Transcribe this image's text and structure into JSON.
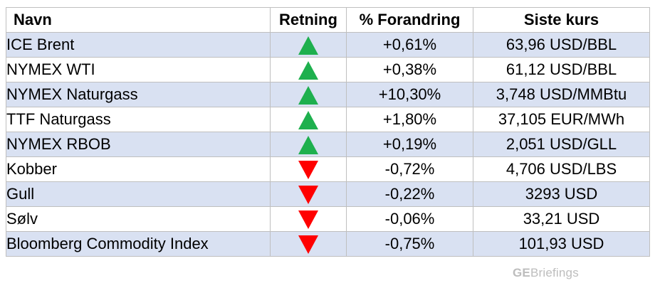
{
  "table": {
    "headers": [
      "Navn",
      "Retning",
      "% Forandring",
      "Siste kurs"
    ],
    "rows": [
      {
        "name": "ICE Brent",
        "direction": "up",
        "change": "+0,61%",
        "last": "63,96 USD/BBL"
      },
      {
        "name": "NYMEX WTI",
        "direction": "up",
        "change": "+0,38%",
        "last": "61,12 USD/BBL"
      },
      {
        "name": "NYMEX Naturgass",
        "direction": "up",
        "change": "+10,30%",
        "last": "3,748 USD/MMBtu"
      },
      {
        "name": "TTF Naturgass",
        "direction": "up",
        "change": "+1,80%",
        "last": "37,105 EUR/MWh"
      },
      {
        "name": "NYMEX RBOB",
        "direction": "up",
        "change": "+0,19%",
        "last": "2,051 USD/GLL"
      },
      {
        "name": "Kobber",
        "direction": "down",
        "change": "-0,72%",
        "last": "4,706 USD/LBS"
      },
      {
        "name": "Gull",
        "direction": "down",
        "change": "-0,22%",
        "last": "3293 USD"
      },
      {
        "name": "Sølv",
        "direction": "down",
        "change": "-0,06%",
        "last": "33,21 USD"
      },
      {
        "name": "Bloomberg Commodity Index",
        "direction": "down",
        "change": "-0,75%",
        "last": "101,93 USD"
      }
    ]
  },
  "colors": {
    "up": "#1eb04e",
    "down": "#ff0000",
    "row_shade": "#d9e1f2"
  },
  "watermark": {
    "bold": "GE",
    "rest": "Briefings"
  }
}
